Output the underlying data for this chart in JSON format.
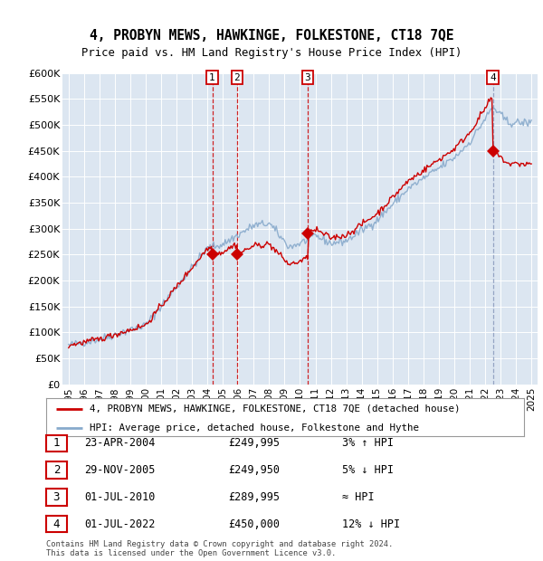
{
  "title": "4, PROBYN MEWS, HAWKINGE, FOLKESTONE, CT18 7QE",
  "subtitle": "Price paid vs. HM Land Registry's House Price Index (HPI)",
  "background_color": "#dce6f1",
  "ylim": [
    0,
    600000
  ],
  "yticks": [
    0,
    50000,
    100000,
    150000,
    200000,
    250000,
    300000,
    350000,
    400000,
    450000,
    500000,
    550000,
    600000
  ],
  "xlim_start": 1994.6,
  "xlim_end": 2025.4,
  "transactions": [
    {
      "num": 1,
      "date": "23-APR-2004",
      "year": 2004.31,
      "price": 249995,
      "pct": "3%",
      "dir": "↑"
    },
    {
      "num": 2,
      "date": "29-NOV-2005",
      "year": 2005.92,
      "price": 249950,
      "pct": "5%",
      "dir": "↓"
    },
    {
      "num": 3,
      "date": "01-JUL-2010",
      "year": 2010.5,
      "price": 289995,
      "pct": "≈",
      "dir": ""
    },
    {
      "num": 4,
      "date": "01-JUL-2022",
      "year": 2022.5,
      "price": 450000,
      "pct": "12%",
      "dir": "↓"
    }
  ],
  "legend_property_label": "4, PROBYN MEWS, HAWKINGE, FOLKESTONE, CT18 7QE (detached house)",
  "legend_hpi_label": "HPI: Average price, detached house, Folkestone and Hythe",
  "footer_line1": "Contains HM Land Registry data © Crown copyright and database right 2024.",
  "footer_line2": "This data is licensed under the Open Government Licence v3.0.",
  "property_color": "#cc0000",
  "hpi_color": "#88aacc",
  "dashed_color": "#cc0000",
  "dashed_color4": "#8899bb",
  "grid_color": "#ffffff",
  "box_color": "#cc0000"
}
